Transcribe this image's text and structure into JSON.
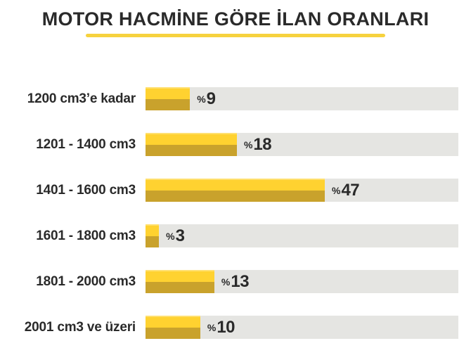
{
  "title": "MOTOR HACMİNE GÖRE İLAN ORANLARI",
  "chart_data": {
    "type": "bar",
    "orientation": "horizontal",
    "title": "MOTOR HACMİNE GÖRE İLAN ORANLARI",
    "value_prefix": "%",
    "categories": [
      "1200 cm3’e kadar",
      "1201 - 1400 cm3",
      "1401 - 1600 cm3",
      "1601 - 1800 cm3",
      "1801 - 2000 cm3",
      "2001 cm3 ve üzeri"
    ],
    "values": [
      9,
      18,
      47,
      3,
      13,
      10
    ],
    "value_labels": [
      "%9",
      "%18",
      "%47",
      "%3",
      "%13",
      "%10"
    ],
    "bar_track_fractions": [
      0.142,
      0.292,
      0.573,
      0.043,
      0.22,
      0.175
    ],
    "xlim": [
      0,
      100
    ],
    "grid": false,
    "legend": false,
    "axis_ticks": "none"
  },
  "colors": {
    "background": "#ffffff",
    "text": "#2a2a2a",
    "underline": "#f6d23e",
    "track": "#e5e5e2",
    "bar_top": "#ffd230",
    "bar_bottom": "#c9a22c",
    "bar_highlight": "#ffe070"
  }
}
